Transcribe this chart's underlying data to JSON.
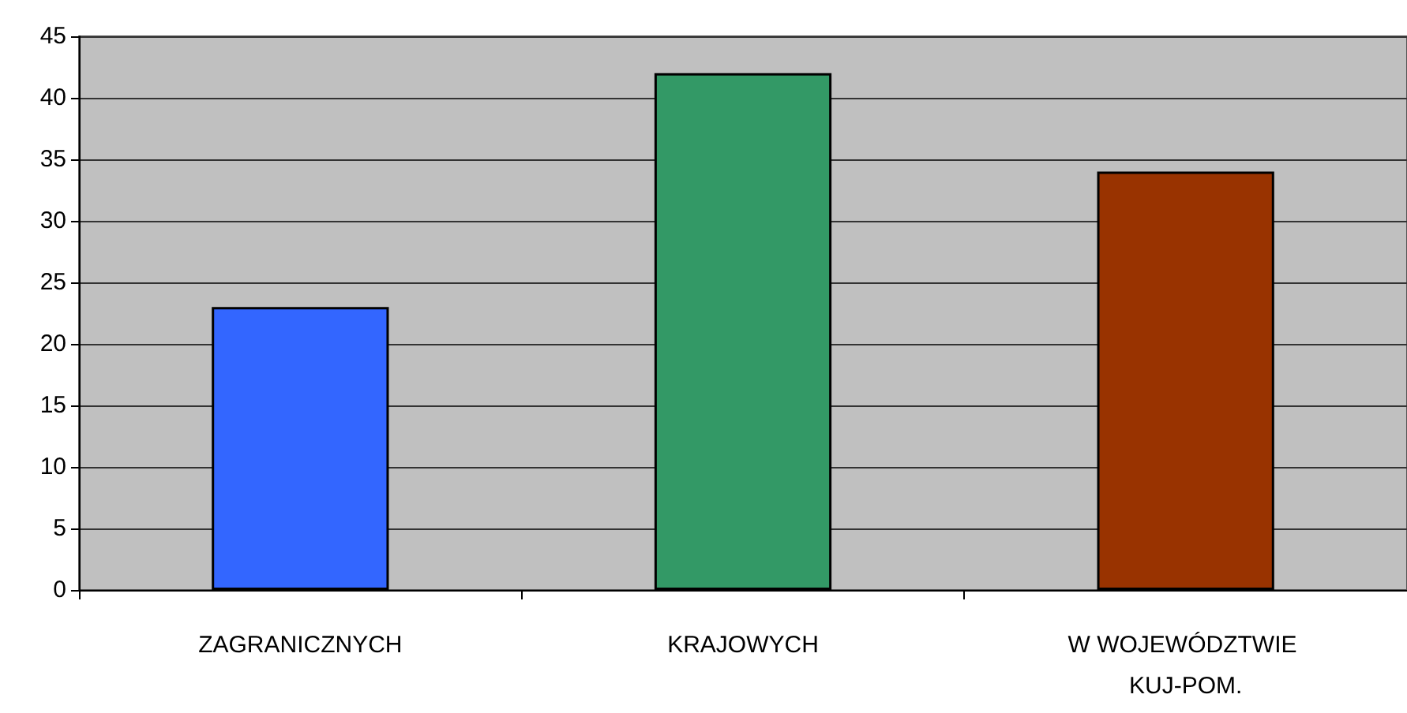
{
  "chart_data": {
    "type": "bar",
    "categories": [
      "ZAGRANICZNYCH",
      "KRAJOWYCH",
      "W WOJEWÓDZTWIE KUJ-POM."
    ],
    "values": [
      23,
      42,
      34
    ],
    "colors": [
      "#3366ff",
      "#339966",
      "#993300"
    ],
    "ylim": [
      0,
      45
    ],
    "yticks": [
      0,
      5,
      10,
      15,
      20,
      25,
      30,
      35,
      40,
      45
    ],
    "grid": "y"
  }
}
